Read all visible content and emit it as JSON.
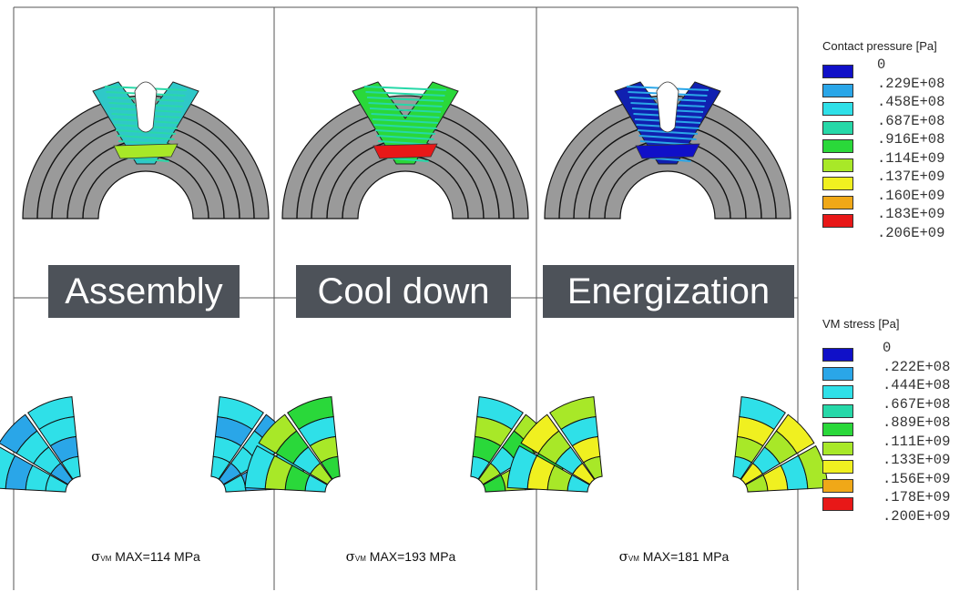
{
  "stages": [
    {
      "name": "Assembly",
      "sigma_label": "σ",
      "sub": "VM",
      "max_text": " MAX=114 MPa"
    },
    {
      "name": "Cool down",
      "sigma_label": "σ",
      "sub": "VM",
      "max_text": " MAX=193 MPa"
    },
    {
      "name": "Energization",
      "sigma_label": "σ",
      "sub": "VM",
      "max_text": " MAX=181 MPa"
    }
  ],
  "contact_legend": {
    "title": "Contact pressure [Pa]",
    "ticks": [
      "0",
      ".229E+08",
      ".458E+08",
      ".687E+08",
      ".916E+08",
      ".114E+09",
      ".137E+09",
      ".160E+09",
      ".183E+09",
      ".206E+09"
    ],
    "colors": [
      "#1010c8",
      "#2aa6e8",
      "#2fe0e8",
      "#26d8a8",
      "#2ad83a",
      "#a8e828",
      "#f0f020",
      "#f0a818",
      "#e81818"
    ]
  },
  "stress_legend": {
    "title": "VM stress [Pa]",
    "ticks": [
      "0",
      ".222E+08",
      ".444E+08",
      ".667E+08",
      ".889E+08",
      ".111E+09",
      ".133E+09",
      ".156E+09",
      ".178E+09",
      ".200E+09"
    ],
    "colors": [
      "#1010c8",
      "#2aa6e8",
      "#2fe0e8",
      "#26d8a8",
      "#2ad83a",
      "#a8e828",
      "#f0f020",
      "#f0a818",
      "#e81818"
    ]
  },
  "colors": {
    "coil_gray": "#9a9a9a",
    "label_bg": "#4d5259",
    "frame": "#555555"
  }
}
